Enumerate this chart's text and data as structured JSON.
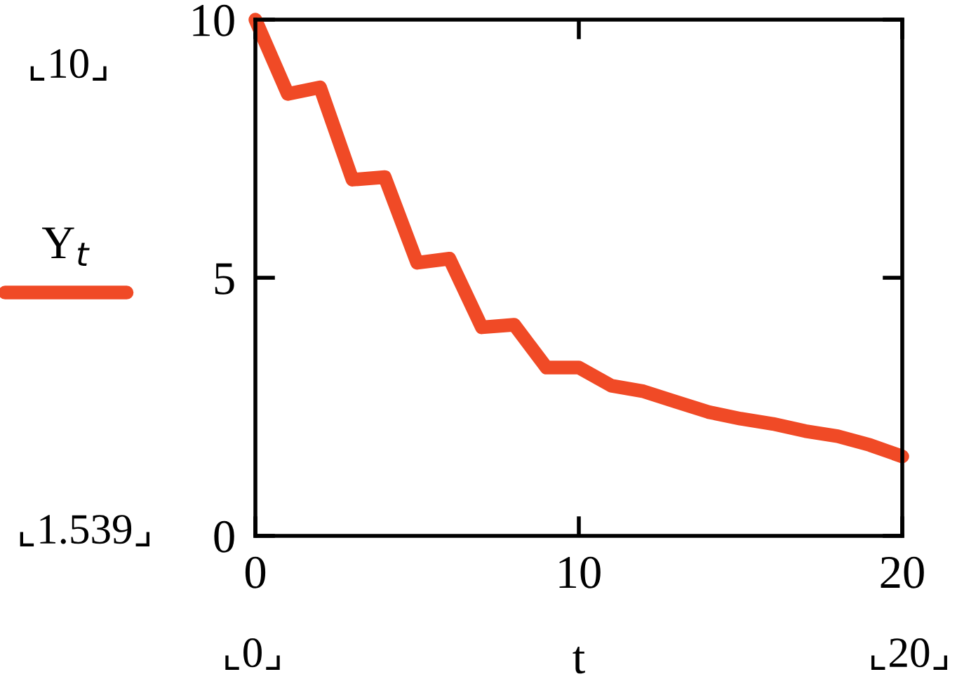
{
  "chart_data": {
    "type": "line",
    "xlabel": "t",
    "x": [
      0,
      1,
      2,
      3,
      4,
      5,
      6,
      7,
      8,
      9,
      10,
      11,
      12,
      13,
      14,
      15,
      16,
      17,
      18,
      19,
      20
    ],
    "series": [
      {
        "name": "Y$_{t}$",
        "color": "#f04a26",
        "values": [
          10,
          8.56,
          8.69,
          6.9,
          6.95,
          5.29,
          5.37,
          4.04,
          4.09,
          3.26,
          3.26,
          2.91,
          2.8,
          2.6,
          2.4,
          2.27,
          2.17,
          2.03,
          1.93,
          1.76,
          1.539
        ]
      }
    ],
    "xlim": [
      0,
      20
    ],
    "xticks": [
      0,
      10,
      20
    ],
    "ylim": [
      0,
      10
    ],
    "yticks": [
      0,
      5,
      10
    ],
    "legend": "left",
    "grid": false,
    "marker": "none",
    "line_style": "solid",
    "annotations": [
      "⌞10⌟",
      "⌞1.539⌟",
      "⌞0⌟",
      "⌞20⌟"
    ]
  }
}
